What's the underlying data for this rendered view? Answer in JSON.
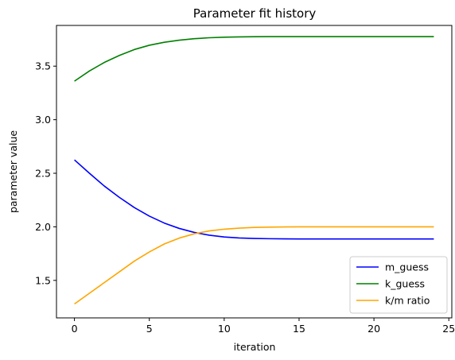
{
  "chart_data": {
    "type": "line",
    "title": "Parameter fit history",
    "xlabel": "iteration",
    "ylabel": "parameter value",
    "xlim": [
      -1.2,
      25.2
    ],
    "ylim": [
      1.15,
      3.88
    ],
    "xticks": [
      0,
      5,
      10,
      15,
      20,
      25
    ],
    "yticks": [
      1.5,
      2.0,
      2.5,
      3.0,
      3.5
    ],
    "xtick_labels": [
      "0",
      "5",
      "10",
      "15",
      "20",
      "25"
    ],
    "ytick_labels": [
      "1.5",
      "2.0",
      "2.5",
      "3.0",
      "3.5"
    ],
    "grid": false,
    "legend_position": "lower-right",
    "x": [
      0,
      1,
      2,
      3,
      4,
      5,
      6,
      7,
      8,
      9,
      10,
      11,
      12,
      13,
      14,
      15,
      16,
      17,
      18,
      19,
      20,
      21,
      22,
      23,
      24
    ],
    "series": [
      {
        "name": "m_guess",
        "color": "#0000ff",
        "values": [
          2.625,
          2.5,
          2.38,
          2.275,
          2.18,
          2.1,
          2.035,
          1.985,
          1.948,
          1.922,
          1.905,
          1.896,
          1.891,
          1.889,
          1.888,
          1.887,
          1.887,
          1.887,
          1.887,
          1.887,
          1.887,
          1.887,
          1.887,
          1.887,
          1.887
        ]
      },
      {
        "name": "k_guess",
        "color": "#008000",
        "values": [
          3.36,
          3.455,
          3.535,
          3.6,
          3.655,
          3.695,
          3.723,
          3.742,
          3.756,
          3.765,
          3.77,
          3.773,
          3.775,
          3.776,
          3.776,
          3.776,
          3.776,
          3.776,
          3.776,
          3.776,
          3.776,
          3.776,
          3.776,
          3.776,
          3.776
        ]
      },
      {
        "name": "k/m ratio",
        "color": "#ffa500",
        "values": [
          1.28,
          1.38,
          1.48,
          1.58,
          1.68,
          1.765,
          1.84,
          1.895,
          1.935,
          1.962,
          1.978,
          1.988,
          1.994,
          1.997,
          1.999,
          2.0,
          2.0,
          2.0,
          2.0,
          2.0,
          2.0,
          2.0,
          2.0,
          2.0,
          2.0
        ]
      }
    ]
  }
}
